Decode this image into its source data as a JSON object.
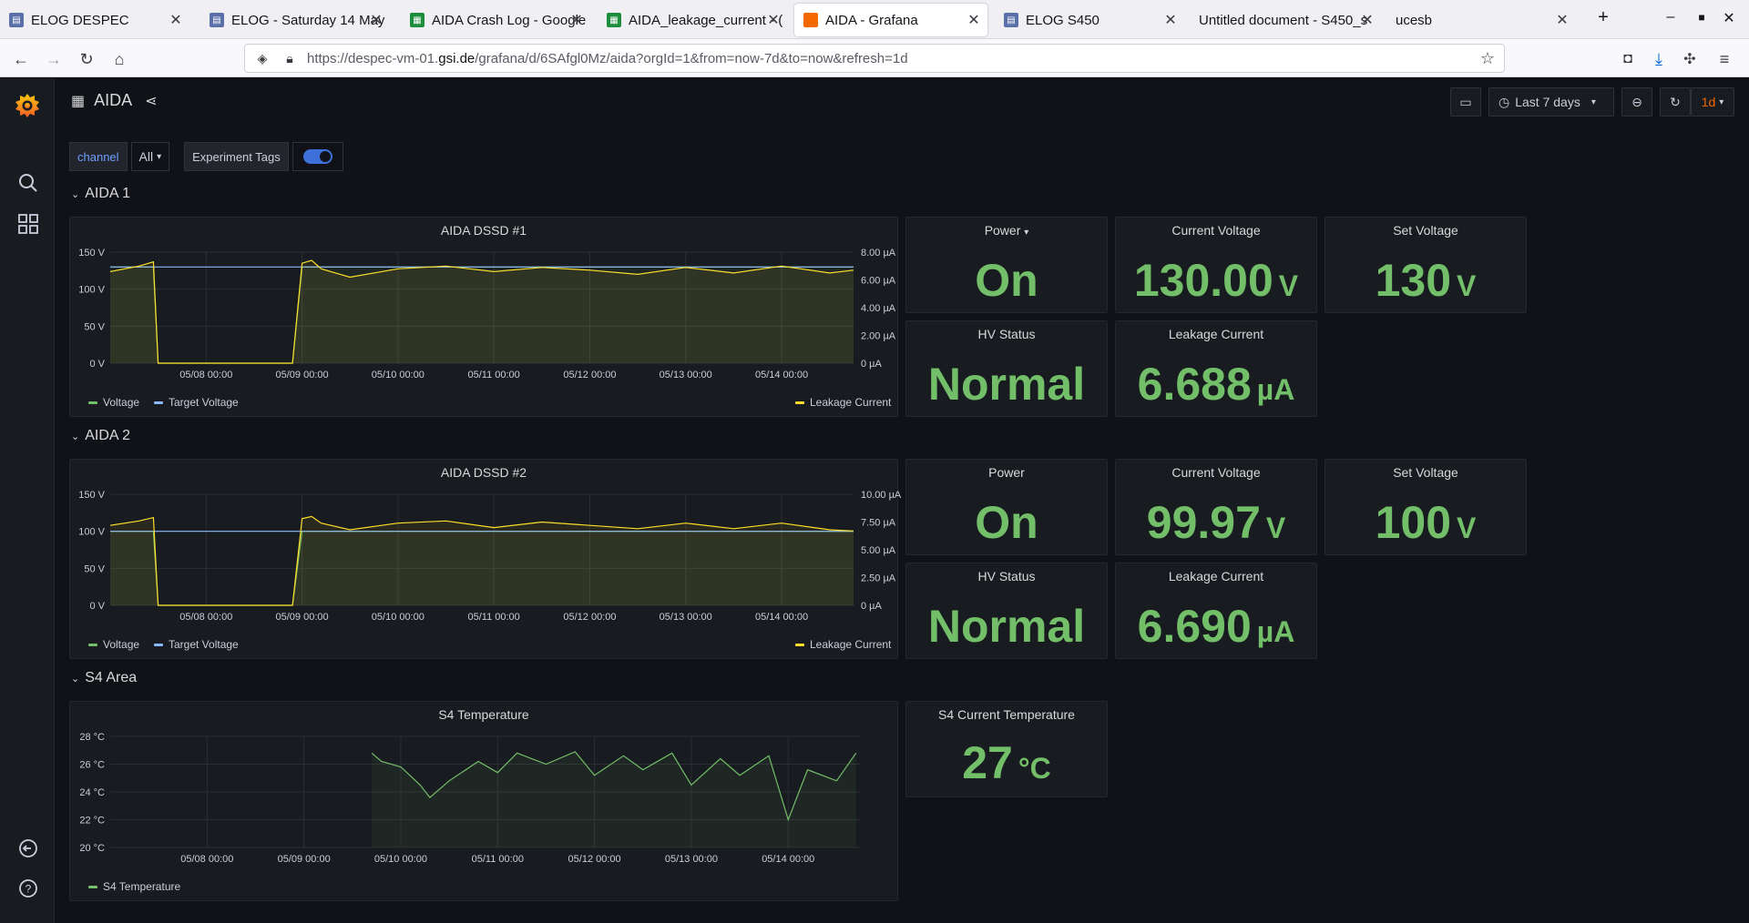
{
  "browser": {
    "tabs": [
      {
        "label": "ELOG DESPEC",
        "icon": "elog"
      },
      {
        "label": "ELOG - Saturday 14 May",
        "icon": "elog"
      },
      {
        "label": "AIDA Crash Log - Google",
        "icon": "sheet"
      },
      {
        "label": "AIDA_leakage_current - (",
        "icon": "sheet"
      },
      {
        "label": "AIDA - Grafana",
        "icon": "graf"
      },
      {
        "label": "ELOG S450",
        "icon": "elog"
      },
      {
        "label": "Untitled document - S450_s",
        "icon": "none"
      },
      {
        "label": "ucesb",
        "icon": "none"
      }
    ],
    "url_prefix": "https://despec-vm-01.",
    "url_domain": "gsi.de",
    "url_suffix": "/grafana/d/6SAfgl0Mz/aida?orgId=1&from=now-7d&to=now&refresh=1d"
  },
  "dashboard": {
    "title": "AIDA",
    "time_range": "Last 7 days",
    "refresh": "1d",
    "variables": {
      "channel_label": "channel",
      "channel_value": "All",
      "tags_label": "Experiment Tags",
      "tags_enabled": true
    },
    "rows": [
      "AIDA 1",
      "AIDA 2",
      "S4 Area"
    ]
  },
  "panels": {
    "aida1": {
      "chart_title": "AIDA DSSD #1",
      "power_title": "Power",
      "power_value": "On",
      "cv_title": "Current Voltage",
      "cv_value": "130.00",
      "cv_unit": "V",
      "sv_title": "Set Voltage",
      "sv_value": "130",
      "sv_unit": "V",
      "hv_title": "HV Status",
      "hv_value": "Normal",
      "lc_title": "Leakage Current",
      "lc_value": "6.688",
      "lc_unit": "µA",
      "legend_voltage": "Voltage",
      "legend_target": "Target Voltage",
      "legend_leak": "Leakage Current"
    },
    "aida2": {
      "chart_title": "AIDA DSSD #2",
      "power_title": "Power",
      "power_value": "On",
      "cv_title": "Current Voltage",
      "cv_value": "99.97",
      "cv_unit": "V",
      "sv_title": "Set Voltage",
      "sv_value": "100",
      "sv_unit": "V",
      "hv_title": "HV Status",
      "hv_value": "Normal",
      "lc_title": "Leakage Current",
      "lc_value": "6.690",
      "lc_unit": "µA",
      "legend_voltage": "Voltage",
      "legend_target": "Target Voltage",
      "legend_leak": "Leakage Current"
    },
    "s4": {
      "chart_title": "S4 Temperature",
      "temp_title": "S4 Current Temperature",
      "temp_value": "27",
      "temp_unit": "°C",
      "legend_temp": "S4 Temperature"
    }
  },
  "colors": {
    "voltage": "#73bf69",
    "target": "#8ab8ff",
    "leak": "#fade2a",
    "stat_green": "#73bf69",
    "accent_orange": "#f46800"
  },
  "chart_data": [
    {
      "type": "line",
      "title": "AIDA DSSD #1",
      "x_ticks": [
        "05/08 00:00",
        "05/09 00:00",
        "05/10 00:00",
        "05/11 00:00",
        "05/12 00:00",
        "05/13 00:00",
        "05/14 00:00"
      ],
      "y_left_ticks": [
        "0 V",
        "50 V",
        "100 V",
        "150 V"
      ],
      "y_right_ticks": [
        "0 µA",
        "2.00 µA",
        "4.00 µA",
        "6.00 µA",
        "8.00 µA"
      ],
      "ylim_left": [
        0,
        150
      ],
      "ylim_right": [
        0,
        8
      ],
      "x": [
        7.0,
        7.3,
        7.45,
        7.5,
        8.5,
        8.9,
        9.0,
        9.1,
        9.2,
        9.5,
        10.0,
        10.5,
        11.0,
        11.5,
        12.0,
        12.5,
        13.0,
        13.5,
        14.0,
        14.5,
        14.75
      ],
      "series": [
        {
          "name": "Voltage",
          "axis": "left",
          "values": [
            130,
            130,
            130,
            0,
            0,
            0,
            130,
            130,
            130,
            130,
            130,
            130,
            130,
            130,
            130,
            130,
            130,
            130,
            130,
            130,
            130
          ]
        },
        {
          "name": "Target Voltage",
          "axis": "left",
          "values": [
            130,
            130,
            130,
            130,
            130,
            130,
            130,
            130,
            130,
            130,
            130,
            130,
            130,
            130,
            130,
            130,
            130,
            130,
            130,
            130,
            130
          ]
        },
        {
          "name": "Leakage Current",
          "axis": "right",
          "values": [
            6.6,
            7.0,
            7.3,
            0,
            0,
            0,
            7.2,
            7.4,
            6.8,
            6.2,
            6.8,
            7.0,
            6.6,
            6.9,
            6.7,
            6.4,
            6.9,
            6.5,
            7.0,
            6.5,
            6.7
          ]
        }
      ]
    },
    {
      "type": "line",
      "title": "AIDA DSSD #2",
      "x_ticks": [
        "05/08 00:00",
        "05/09 00:00",
        "05/10 00:00",
        "05/11 00:00",
        "05/12 00:00",
        "05/13 00:00",
        "05/14 00:00"
      ],
      "y_left_ticks": [
        "0 V",
        "50 V",
        "100 V",
        "150 V"
      ],
      "y_right_ticks": [
        "0 µA",
        "2.50 µA",
        "5.00 µA",
        "7.50 µA",
        "10.00 µA"
      ],
      "ylim_left": [
        0,
        150
      ],
      "ylim_right": [
        0,
        10
      ],
      "x": [
        7.0,
        7.3,
        7.45,
        7.5,
        8.5,
        8.9,
        9.0,
        9.1,
        9.2,
        9.5,
        10.0,
        10.5,
        11.0,
        11.5,
        12.0,
        12.5,
        13.0,
        13.5,
        14.0,
        14.5,
        14.75
      ],
      "series": [
        {
          "name": "Voltage",
          "axis": "left",
          "values": [
            100,
            100,
            100,
            0,
            0,
            0,
            100,
            100,
            100,
            100,
            100,
            100,
            100,
            100,
            100,
            100,
            100,
            100,
            100,
            100,
            100
          ]
        },
        {
          "name": "Target Voltage",
          "axis": "left",
          "values": [
            100,
            100,
            100,
            100,
            100,
            100,
            100,
            100,
            100,
            100,
            100,
            100,
            100,
            100,
            100,
            100,
            100,
            100,
            100,
            100,
            100
          ]
        },
        {
          "name": "Leakage Current",
          "axis": "right",
          "values": [
            7.2,
            7.6,
            7.9,
            0,
            0,
            0,
            7.8,
            8.0,
            7.4,
            6.8,
            7.4,
            7.6,
            7.0,
            7.5,
            7.2,
            6.9,
            7.4,
            6.9,
            7.4,
            6.8,
            6.7
          ]
        }
      ]
    },
    {
      "type": "line",
      "title": "S4 Temperature",
      "x_ticks": [
        "05/08 00:00",
        "05/09 00:00",
        "05/10 00:00",
        "05/11 00:00",
        "05/12 00:00",
        "05/13 00:00",
        "05/14 00:00"
      ],
      "y_ticks": [
        "20 °C",
        "22 °C",
        "24 °C",
        "26 °C",
        "28 °C"
      ],
      "ylim": [
        20,
        28
      ],
      "x": [
        9.7,
        9.8,
        10.0,
        10.2,
        10.3,
        10.5,
        10.8,
        11.0,
        11.2,
        11.5,
        11.8,
        12.0,
        12.3,
        12.5,
        12.8,
        13.0,
        13.3,
        13.5,
        13.8,
        14.0,
        14.2,
        14.5,
        14.7
      ],
      "series": [
        {
          "name": "S4 Temperature",
          "values": [
            26.8,
            26.2,
            25.8,
            24.5,
            23.6,
            24.8,
            26.2,
            25.4,
            26.8,
            26.0,
            26.9,
            25.2,
            26.6,
            25.6,
            26.8,
            24.5,
            26.4,
            25.2,
            26.6,
            22.0,
            25.6,
            24.8,
            26.8
          ]
        }
      ]
    }
  ]
}
